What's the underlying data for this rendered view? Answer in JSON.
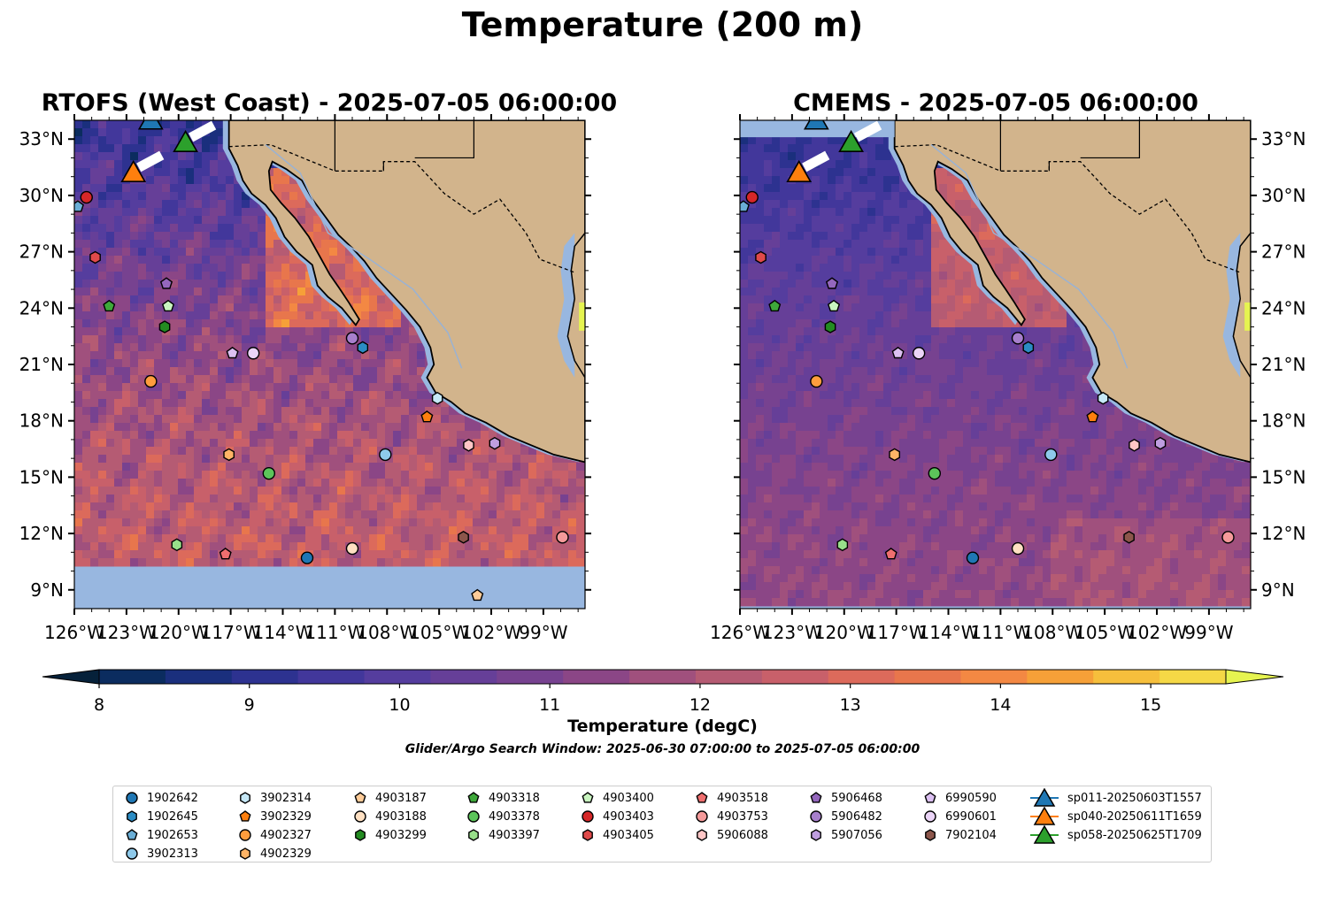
{
  "title": "Temperature (200 m)",
  "maps": [
    {
      "title": "RTOFS (West Coast) - 2025-07-05 06:00:00",
      "source": "RTOFS"
    },
    {
      "title": "CMEMS - 2025-07-05 06:00:00",
      "source": "CMEMS"
    }
  ],
  "extent": {
    "lon_min": -126,
    "lon_max": -96.6,
    "lat_min": 8,
    "lat_max": 34
  },
  "x_ticks": [
    "126°W",
    "123°W",
    "120°W",
    "117°W",
    "114°W",
    "111°W",
    "108°W",
    "105°W",
    "102°W",
    "99°W"
  ],
  "y_ticks": [
    "33°N",
    "30°N",
    "27°N",
    "24°N",
    "21°N",
    "18°N",
    "15°N",
    "12°N",
    "9°N"
  ],
  "colorbar": {
    "label": "Temperature (degC)",
    "min": 8,
    "max": 15.5,
    "step": 0.5,
    "extend": "both",
    "ticks": [
      "8",
      "9",
      "10",
      "11",
      "12",
      "13",
      "14",
      "15"
    ],
    "colors": [
      "#06213a",
      "#0b2c5f",
      "#1a2f7d",
      "#2d3290",
      "#42379b",
      "#553d9e",
      "#663f98",
      "#774290",
      "#8b4686",
      "#a0507d",
      "#b55b73",
      "#c8606a",
      "#dc6a5b",
      "#e8764c",
      "#f38843",
      "#f6a038",
      "#f6bf3c",
      "#f5d846",
      "#e6f450"
    ]
  },
  "search_window": "Glider/Argo Search Window: 2025-06-30 07:00:00 to 2025-07-05 06:00:00",
  "colors": {
    "land": "#d2b48c",
    "shelf": "#98b7e0",
    "coast": "#000000"
  },
  "platforms": [
    {
      "id": "1902642",
      "marker": "circle",
      "color": "#1f77b4",
      "lon": -112.6,
      "lat": 10.7
    },
    {
      "id": "1902645",
      "marker": "hexagon",
      "color": "#2b8cc4",
      "lon": -109.4,
      "lat": 21.9
    },
    {
      "id": "1902653",
      "marker": "pentagon",
      "color": "#6aaed6",
      "lon": -125.8,
      "lat": 29.4
    },
    {
      "id": "3902313",
      "marker": "circle",
      "color": "#8ec9ea",
      "lon": -108.1,
      "lat": 16.2
    },
    {
      "id": "3902314",
      "marker": "hexagon",
      "color": "#c6e8f7",
      "lon": -105.1,
      "lat": 19.2
    },
    {
      "id": "3902329",
      "marker": "pentagon",
      "color": "#ff7f0e",
      "lon": -105.7,
      "lat": 18.2
    },
    {
      "id": "4902327",
      "marker": "circle",
      "color": "#ff9d3d",
      "lon": -121.6,
      "lat": 20.1
    },
    {
      "id": "4902329",
      "marker": "hexagon",
      "color": "#ffb466",
      "lon": -117.1,
      "lat": 16.2
    },
    {
      "id": "4903187",
      "marker": "pentagon",
      "color": "#ffcc99",
      "lon": -102.8,
      "lat": 8.7
    },
    {
      "id": "4903188",
      "marker": "circle",
      "color": "#ffe0c2",
      "lon": -110.0,
      "lat": 11.2
    },
    {
      "id": "4903299",
      "marker": "hexagon",
      "color": "#238b21",
      "lon": -120.8,
      "lat": 23.0
    },
    {
      "id": "4903318",
      "marker": "pentagon",
      "color": "#3ea83a",
      "lon": -124.0,
      "lat": 24.1
    },
    {
      "id": "4903378",
      "marker": "circle",
      "color": "#5cc45a",
      "lon": -114.8,
      "lat": 15.2
    },
    {
      "id": "4903397",
      "marker": "hexagon",
      "color": "#98df8a",
      "lon": -120.1,
      "lat": 11.4
    },
    {
      "id": "4903400",
      "marker": "pentagon",
      "color": "#c9f5c0",
      "lon": -120.6,
      "lat": 24.1
    },
    {
      "id": "4903403",
      "marker": "circle",
      "color": "#d62728",
      "lon": -125.3,
      "lat": 29.9
    },
    {
      "id": "4903405",
      "marker": "hexagon",
      "color": "#e04a4a",
      "lon": -124.8,
      "lat": 26.7
    },
    {
      "id": "4903518",
      "marker": "pentagon",
      "color": "#ef6f6f",
      "lon": -117.3,
      "lat": 10.9
    },
    {
      "id": "4903753",
      "marker": "circle",
      "color": "#f59a9a",
      "lon": -97.9,
      "lat": 11.8
    },
    {
      "id": "5906088",
      "marker": "hexagon",
      "color": "#ffc6c6",
      "lon": -103.3,
      "lat": 16.7
    },
    {
      "id": "5906468",
      "marker": "pentagon",
      "color": "#9467bd",
      "lon": -120.7,
      "lat": 25.3
    },
    {
      "id": "5906482",
      "marker": "circle",
      "color": "#a77fcc",
      "lon": -110.0,
      "lat": 22.4
    },
    {
      "id": "5907056",
      "marker": "hexagon",
      "color": "#bf9ee0",
      "lon": -101.8,
      "lat": 16.8
    },
    {
      "id": "6990590",
      "marker": "pentagon",
      "color": "#dcc0f2",
      "lon": -116.9,
      "lat": 21.6
    },
    {
      "id": "6990601",
      "marker": "circle",
      "color": "#ebd4f7",
      "lon": -115.7,
      "lat": 21.6
    },
    {
      "id": "7902104",
      "marker": "hexagon",
      "color": "#8c564b",
      "lon": -103.6,
      "lat": 11.8
    }
  ],
  "gliders": [
    {
      "id": "sp011-20250603T1557",
      "color": "#1f77b4",
      "lon": -121.6,
      "lat": 34.0
    },
    {
      "id": "sp040-20250611T1659",
      "color": "#ff7f0e",
      "lon": -122.6,
      "lat": 31.2
    },
    {
      "id": "sp058-20250625T1709",
      "color": "#2ca02c",
      "lon": -119.6,
      "lat": 32.8
    }
  ]
}
